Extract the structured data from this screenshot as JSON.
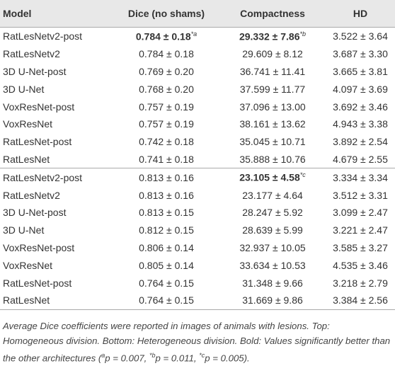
{
  "table": {
    "header": [
      "Model",
      "Dice (no shams)",
      "Compactness",
      "HD"
    ],
    "groups": [
      [
        [
          "RatLesNetv2-post",
          {
            "text": "0.784 ± 0.18",
            "sup": "*a",
            "bold": true
          },
          {
            "text": "29.332 ± 7.86",
            "sup": "*b",
            "bold": true
          },
          "3.522 ± 3.64"
        ],
        [
          "RatLesNetv2",
          "0.784 ± 0.18",
          "29.609 ± 8.12",
          "3.687 ± 3.30"
        ],
        [
          "3D U-Net-post",
          "0.769 ± 0.20",
          "36.741 ± 11.41",
          "3.665 ± 3.81"
        ],
        [
          "3D U-Net",
          "0.768 ± 0.20",
          "37.599 ± 11.77",
          "4.097 ± 3.69"
        ],
        [
          "VoxResNet-post",
          "0.757 ± 0.19",
          "37.096 ± 13.00",
          "3.692 ± 3.46"
        ],
        [
          "VoxResNet",
          "0.757 ± 0.19",
          "38.161 ± 13.62",
          "4.943 ± 3.38"
        ],
        [
          "RatLesNet-post",
          "0.742 ± 0.18",
          "35.045 ± 10.71",
          "3.892 ± 2.54"
        ],
        [
          "RatLesNet",
          "0.741 ± 0.18",
          "35.888 ± 10.76",
          "4.679 ± 2.55"
        ]
      ],
      [
        [
          "RatLesNetv2-post",
          "0.813 ± 0.16",
          {
            "text": "23.105 ± 4.58",
            "sup": "*c",
            "bold": true
          },
          "3.334 ± 3.34"
        ],
        [
          "RatLesNetv2",
          "0.813 ± 0.16",
          "23.177 ± 4.64",
          "3.512 ± 3.31"
        ],
        [
          "3D U-Net-post",
          "0.813 ± 0.15",
          "28.247 ± 5.92",
          "3.099 ± 2.47"
        ],
        [
          "3D U-Net",
          "0.812 ± 0.15",
          "28.639 ± 5.99",
          "3.221 ± 2.47"
        ],
        [
          "VoxResNet-post",
          "0.806 ± 0.14",
          "32.937 ± 10.05",
          "3.585 ± 3.27"
        ],
        [
          "VoxResNet",
          "0.805 ± 0.14",
          "33.634 ± 10.53",
          "4.535 ± 3.46"
        ],
        [
          "RatLesNet-post",
          "0.764 ± 0.15",
          "31.348 ± 9.66",
          "3.218 ± 2.79"
        ],
        [
          "RatLesNet",
          "0.764 ± 0.15",
          "31.669 ± 9.86",
          "3.384 ± 2.56"
        ]
      ]
    ],
    "caption": [
      {
        "text": "Average Dice coefficients were reported in images of animals with lesions. Top: Homogeneous division. Bottom: Heterogeneous division. Bold: Values significantly better than the other architectures ("
      },
      {
        "sup": "a"
      },
      {
        "text": "p = 0.007, "
      },
      {
        "sup": "*b"
      },
      {
        "text": "p = 0.011, "
      },
      {
        "sup": "*c"
      },
      {
        "text": "p = 0.005)."
      }
    ]
  }
}
